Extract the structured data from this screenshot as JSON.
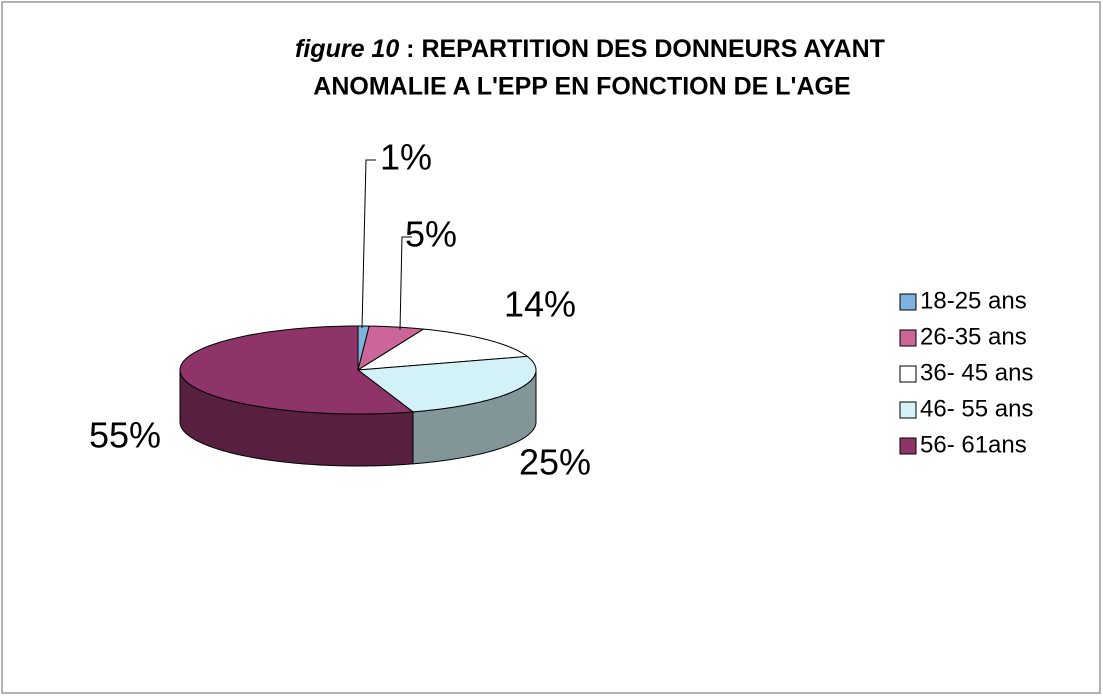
{
  "chart_data": {
    "type": "pie",
    "title": [
      "figure 10",
      " : REPARTITION DES DONNEURS AYANT",
      "ANOMALIE A L'EPP EN FONCTION DE L'AGE"
    ],
    "categories": [
      "18-25 ans",
      "26-35 ans",
      "36- 45 ans",
      "46- 55 ans",
      "56- 61ans"
    ],
    "values": [
      1,
      5,
      14,
      25,
      55
    ],
    "value_labels": [
      "1%",
      "5%",
      "14%",
      "25%",
      "55%"
    ],
    "colors": [
      "#7db3de",
      "#cc6699",
      "#ffffff",
      "#d2f2f8",
      "#8e3468"
    ],
    "legend": "right"
  }
}
